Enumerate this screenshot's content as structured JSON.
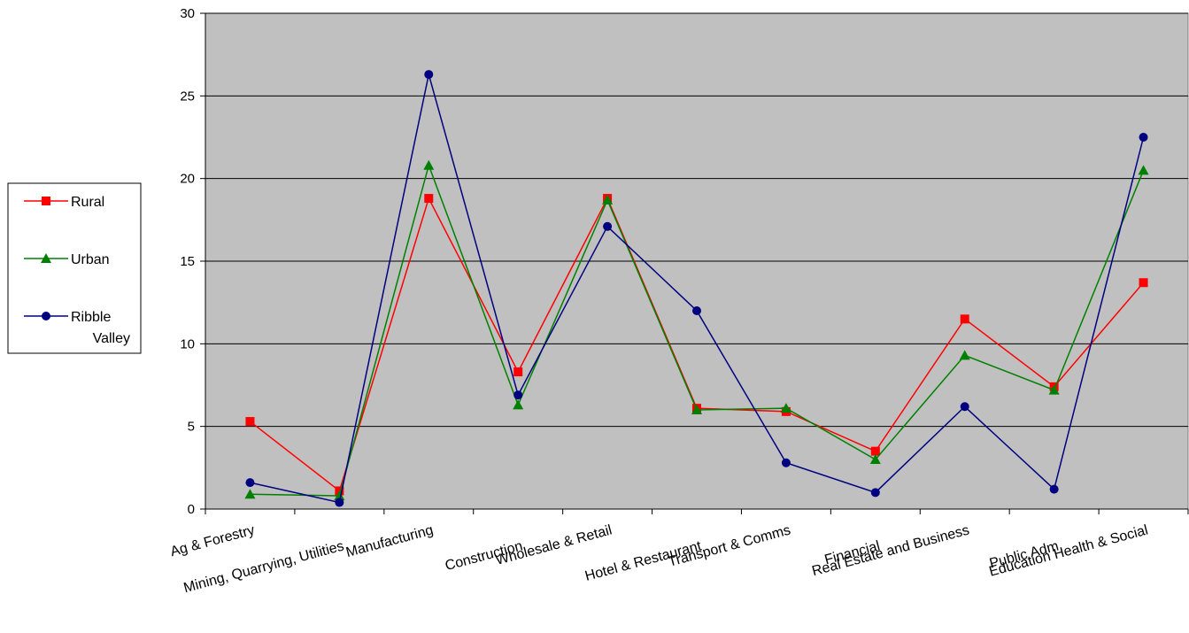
{
  "chart_data": {
    "type": "line",
    "categories": [
      "Ag & Forestry",
      "Mining, Quarrying, Utilities",
      "Manufacturing",
      "Construction",
      "Wholesale & Retail",
      "Hotel & Restaurant",
      "Transport & Comms",
      "Financial",
      "Real Estate and Business",
      "Public Adm",
      "Education Health & Social"
    ],
    "series": [
      {
        "name": "Rural",
        "values": [
          5.3,
          1.1,
          18.8,
          8.3,
          18.8,
          6.1,
          5.9,
          3.5,
          11.5,
          7.4,
          13.7
        ],
        "color": "#ff0000",
        "marker": "square"
      },
      {
        "name": "Urban",
        "values": [
          0.9,
          0.8,
          20.8,
          6.3,
          18.7,
          6.0,
          6.1,
          3.0,
          9.3,
          7.2,
          20.5
        ],
        "color": "#008000",
        "marker": "triangle"
      },
      {
        "name": "Ribble Valley",
        "values": [
          1.6,
          0.4,
          26.3,
          6.9,
          17.1,
          12.0,
          2.8,
          1.0,
          6.2,
          1.2,
          22.5
        ],
        "color": "#000080",
        "marker": "circle"
      }
    ],
    "legend_labels": [
      [
        "Rural"
      ],
      [
        "Urban"
      ],
      [
        "Ribble",
        "Valley"
      ]
    ],
    "yticks": [
      "0",
      "5",
      "10",
      "15",
      "20",
      "25",
      "30"
    ],
    "ylim": [
      0,
      30
    ],
    "ystep": 5,
    "grid": true,
    "plot_background": "#c0c0c0",
    "legend_position": "left"
  }
}
